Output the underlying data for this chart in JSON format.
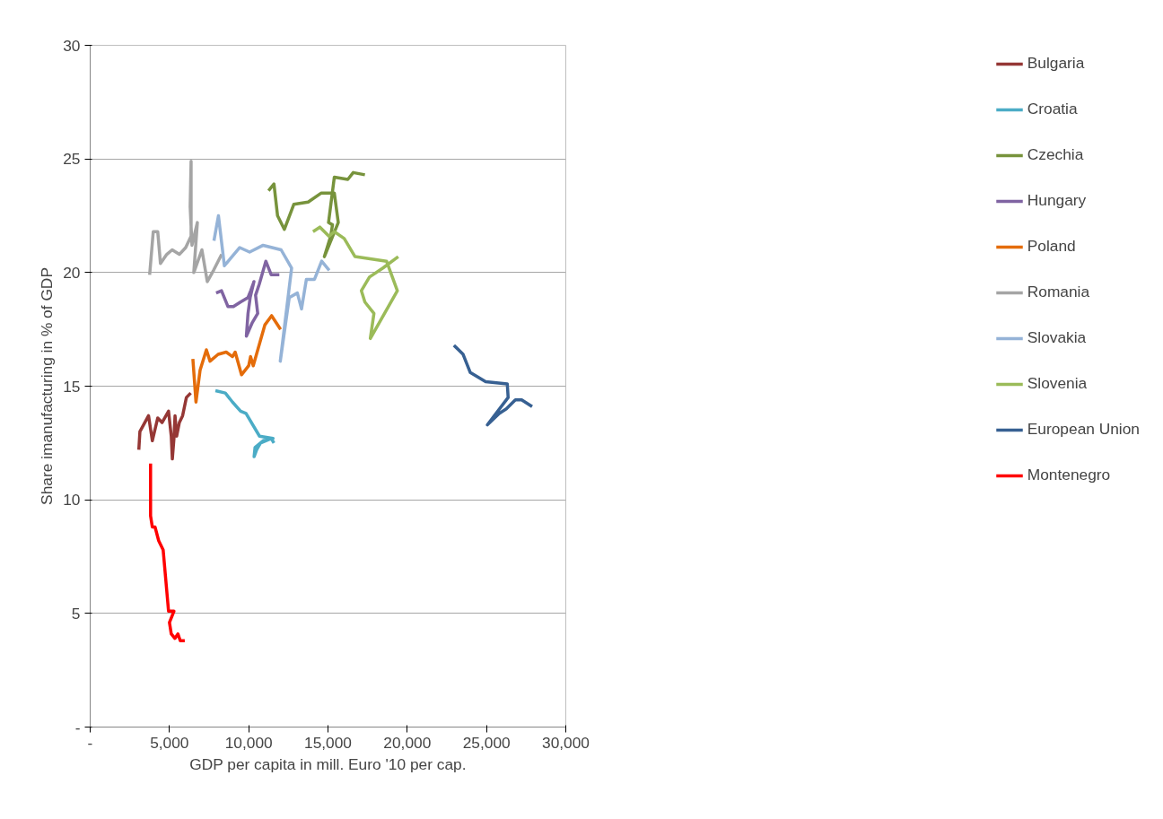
{
  "chart_data": {
    "type": "line",
    "xlabel": "GDP per capita in mill. Euro '10 per cap.",
    "ylabel": "Share imanufacturing in % of GDP",
    "xlim": [
      0,
      30000
    ],
    "ylim": [
      0,
      30
    ],
    "xticks": [
      {
        "value": 0,
        "label": "-"
      },
      {
        "value": 5000,
        "label": "5,000"
      },
      {
        "value": 10000,
        "label": "10,000"
      },
      {
        "value": 15000,
        "label": "15,000"
      },
      {
        "value": 20000,
        "label": "20,000"
      },
      {
        "value": 25000,
        "label": "25,000"
      },
      {
        "value": 30000,
        "label": "30,000"
      }
    ],
    "yticks": [
      {
        "value": 0,
        "label": "-"
      },
      5,
      10,
      15,
      20,
      25,
      30
    ],
    "grid": "y",
    "legend": "right",
    "marker": "none",
    "line_style": "solid",
    "series": [
      {
        "name": "Bulgaria",
        "color": "#953735",
        "x": [
          3068,
          3136,
          3682,
          3920,
          4261,
          4534,
          4943,
          5114,
          5182,
          5284,
          5352,
          5455,
          5625,
          5830,
          6068,
          6341
        ],
        "values": [
          12.2,
          13.0,
          13.7,
          12.6,
          13.6,
          13.4,
          13.9,
          12.8,
          11.8,
          12.7,
          13.7,
          12.8,
          13.4,
          13.7,
          14.5,
          14.7
        ]
      },
      {
        "name": "Croatia",
        "color": "#4bacc6",
        "x": [
          7899,
          8523,
          8977,
          9488,
          9829,
          10681,
          11533,
          10909,
          10398,
          10340,
          10500,
          10739,
          11420,
          11591
        ],
        "values": [
          14.8,
          14.7,
          14.3,
          13.9,
          13.8,
          12.8,
          12.7,
          12.6,
          12.3,
          11.9,
          12.2,
          12.5,
          12.7,
          12.5
        ]
      },
      {
        "name": "Czechia",
        "color": "#77933c",
        "x": [
          11250,
          11591,
          11819,
          12249,
          12843,
          13749,
          14581,
          15399,
          15648,
          14772,
          15170,
          15283,
          15034,
          15399,
          16251,
          16592,
          17329
        ],
        "values": [
          23.6,
          23.9,
          22.5,
          21.9,
          23.0,
          23.1,
          23.5,
          23.5,
          22.2,
          20.7,
          21.6,
          22.1,
          22.2,
          24.2,
          24.1,
          24.4,
          24.3
        ]
      },
      {
        "name": "Hungary",
        "color": "#8064a2",
        "x": [
          7943,
          8284,
          8693,
          9034,
          9477,
          9955,
          10125,
          10330,
          10091,
          9955,
          9852,
          10227,
          10568,
          10432,
          10670,
          11080,
          11420,
          11932
        ],
        "values": [
          19.1,
          19.2,
          18.5,
          18.5,
          18.7,
          18.9,
          19.2,
          19.6,
          18.9,
          18.2,
          17.2,
          17.8,
          18.2,
          19.0,
          19.5,
          20.5,
          19.9,
          19.9
        ]
      },
      {
        "name": "Poland",
        "color": "#e46c0a",
        "x": [
          6477,
          6672,
          6931,
          7330,
          7559,
          8070,
          8581,
          8977,
          9147,
          9545,
          9999,
          10115,
          10285,
          11022,
          11444,
          12010
        ],
        "values": [
          16.2,
          14.3,
          15.7,
          16.6,
          16.1,
          16.4,
          16.5,
          16.3,
          16.5,
          15.5,
          15.9,
          16.3,
          15.9,
          17.7,
          18.1,
          17.5
        ]
      },
      {
        "name": "Romania",
        "color": "#a5a5a5",
        "x": [
          3750,
          3978,
          4261,
          4432,
          4830,
          5171,
          5625,
          6024,
          6365,
          6365,
          6307,
          6420,
          6760,
          6535,
          7047,
          7388,
          7783,
          8294
        ],
        "values": [
          19.9,
          21.8,
          21.8,
          20.4,
          20.8,
          21.0,
          20.8,
          21.1,
          21.6,
          24.9,
          22.9,
          21.2,
          22.2,
          20.0,
          21.0,
          19.6,
          20.1,
          20.8
        ]
      },
      {
        "name": "Slovakia",
        "color": "#95b3d7",
        "x": [
          7807,
          8090,
          8465,
          9433,
          10057,
          10909,
          12044,
          12706,
          11990,
          12556,
          13067,
          13330,
          13636,
          14148,
          14601,
          15078
        ],
        "values": [
          21.4,
          22.5,
          20.3,
          21.1,
          20.9,
          21.2,
          21.0,
          20.2,
          16.1,
          18.9,
          19.1,
          18.4,
          19.7,
          19.7,
          20.5,
          20.1
        ]
      },
      {
        "name": "Slovenia",
        "color": "#9bbb59",
        "x": [
          14056,
          14489,
          15058,
          15399,
          16023,
          16705,
          18693,
          19375,
          17670,
          17898,
          17329,
          17104,
          17615,
          18467,
          19432
        ],
        "values": [
          21.8,
          22.0,
          21.6,
          21.8,
          21.5,
          20.7,
          20.5,
          19.2,
          17.1,
          18.2,
          18.7,
          19.2,
          19.8,
          20.2,
          20.7
        ]
      },
      {
        "name": "European Union",
        "color": "#376092",
        "x": [
          22943,
          23523,
          23976,
          24944,
          26308,
          26363,
          25057,
          25797,
          26250,
          26819,
          27215,
          27876
        ],
        "values": [
          16.8,
          16.4,
          15.6,
          15.2,
          15.1,
          14.5,
          13.3,
          13.8,
          14.0,
          14.4,
          14.4,
          14.1
        ]
      },
      {
        "name": "Montenegro",
        "color": "#ff0000",
        "x": [
          3808,
          3808,
          3920,
          4091,
          4320,
          4602,
          4943,
          5284,
          5001,
          5114,
          5342,
          5533,
          5683,
          5966
        ],
        "values": [
          11.6,
          9.3,
          8.8,
          8.8,
          8.2,
          7.8,
          5.1,
          5.1,
          4.6,
          4.1,
          3.9,
          4.1,
          3.8,
          3.8
        ]
      }
    ]
  }
}
